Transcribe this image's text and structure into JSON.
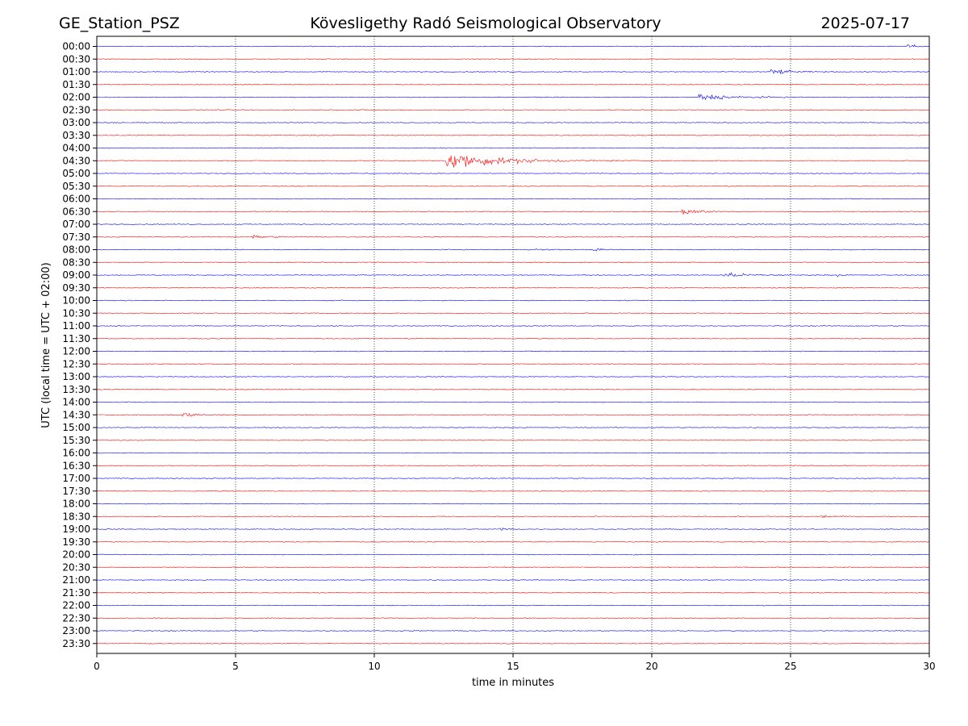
{
  "header": {
    "station": "GE_Station_PSZ",
    "observatory": "Kövesligethy Radó Seismological Observatory",
    "date": "2025-07-17"
  },
  "chart_data": {
    "type": "line",
    "xlabel": "time in minutes",
    "ylabel": "UTC (local time = UTC + 02:00)",
    "xlim": [
      0,
      30
    ],
    "x_ticks": [
      "0",
      "5",
      "10",
      "15",
      "20",
      "25",
      "30"
    ],
    "grid": "vertical dotted at every 5 minutes",
    "row_labels": [
      "00:00",
      "00:30",
      "01:00",
      "01:30",
      "02:00",
      "02:30",
      "03:00",
      "03:30",
      "04:00",
      "04:30",
      "05:00",
      "05:30",
      "06:00",
      "06:30",
      "07:00",
      "07:30",
      "08:00",
      "08:30",
      "09:00",
      "09:30",
      "10:00",
      "10:30",
      "11:00",
      "11:30",
      "12:00",
      "12:30",
      "13:00",
      "13:30",
      "14:00",
      "14:30",
      "15:00",
      "15:30",
      "16:00",
      "16:30",
      "17:00",
      "17:30",
      "18:00",
      "18:30",
      "19:00",
      "19:30",
      "20:00",
      "20:30",
      "21:00",
      "21:30",
      "22:00",
      "22:30",
      "23:00",
      "23:30"
    ],
    "trace_colors": [
      "#0000ff",
      "#ff0000"
    ],
    "events": [
      {
        "row": "00:00",
        "start_min": 29.2,
        "amplitude": 0.45,
        "duration_min": 0.8
      },
      {
        "row": "01:00",
        "start_min": 24.3,
        "amplitude": 0.45,
        "duration_min": 1.8
      },
      {
        "row": "02:00",
        "start_min": 21.7,
        "amplitude": 0.55,
        "duration_min": 2.8
      },
      {
        "row": "04:30",
        "start_min": 12.6,
        "amplitude": 1.35,
        "duration_min": 5.0
      },
      {
        "row": "06:30",
        "start_min": 21.1,
        "amplitude": 0.9,
        "duration_min": 1.4
      },
      {
        "row": "07:30",
        "start_min": 5.6,
        "amplitude": 0.3,
        "duration_min": 1.5
      },
      {
        "row": "08:00",
        "start_min": 15.8,
        "amplitude": 0.15,
        "duration_min": 1.0
      },
      {
        "row": "08:00",
        "start_min": 17.9,
        "amplitude": 0.18,
        "duration_min": 1.2
      },
      {
        "row": "09:00",
        "start_min": 22.6,
        "amplitude": 0.35,
        "duration_min": 2.5
      },
      {
        "row": "09:00",
        "start_min": 26.7,
        "amplitude": 0.3,
        "duration_min": 0.5
      },
      {
        "row": "09:30",
        "start_min": 14.9,
        "amplitude": 0.2,
        "duration_min": 0.2
      },
      {
        "row": "10:30",
        "start_min": 28.6,
        "amplitude": 0.15,
        "duration_min": 0.3
      },
      {
        "row": "14:30",
        "start_min": 3.1,
        "amplitude": 0.45,
        "duration_min": 1.2
      },
      {
        "row": "18:30",
        "start_min": 26.1,
        "amplitude": 0.2,
        "duration_min": 1.0
      },
      {
        "row": "19:00",
        "start_min": 14.5,
        "amplitude": 0.28,
        "duration_min": 0.8
      }
    ]
  }
}
